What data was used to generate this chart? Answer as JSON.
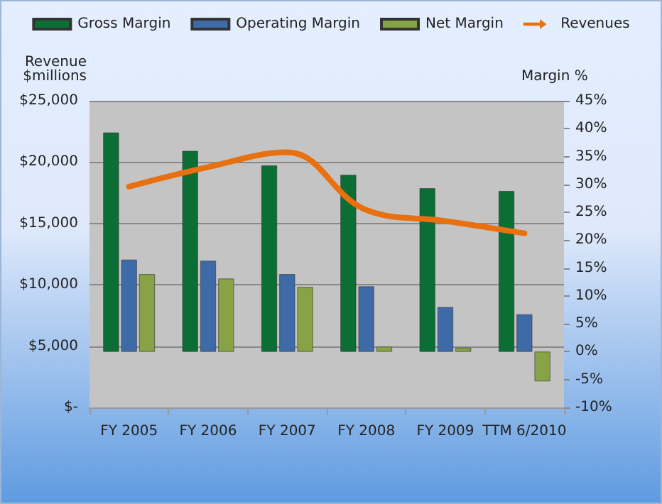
{
  "chart_data": {
    "type": "bar",
    "ylabel": "Revenue\n$millions",
    "y2label": "Margin %",
    "categories": [
      "FY 2005",
      "FY 2006",
      "FY 2007",
      "FY 2008",
      "FY 2009",
      "TTM 6/2010"
    ],
    "series": [
      {
        "name": "Gross Margin",
        "color": "#0b6e35",
        "axis": "y2",
        "values": [
          39.3,
          36.0,
          33.4,
          31.7,
          29.3,
          28.8
        ]
      },
      {
        "name": "Operating Margin",
        "color": "#3e6aa8",
        "axis": "y2",
        "values": [
          16.5,
          16.3,
          13.9,
          11.7,
          8.0,
          6.7
        ]
      },
      {
        "name": "Net Margin",
        "color": "#87a345",
        "axis": "y2",
        "values": [
          13.9,
          13.1,
          11.6,
          0.9,
          0.7,
          -5.3
        ]
      },
      {
        "name": "Revenues",
        "type": "line",
        "color": "#e8700e",
        "axis": "y",
        "values": [
          18000,
          19600,
          20800,
          16100,
          15200,
          14200
        ]
      }
    ],
    "ylim": [
      0,
      25000
    ],
    "yticks": [
      {
        "value": 0,
        "label": "$-"
      },
      {
        "value": 5000,
        "label": "$5,000"
      },
      {
        "value": 10000,
        "label": "$10,000"
      },
      {
        "value": 15000,
        "label": "$15,000"
      },
      {
        "value": 20000,
        "label": "$20,000"
      },
      {
        "value": 25000,
        "label": "$25,000"
      }
    ],
    "y2lim": [
      -10,
      45
    ],
    "y2ticks": [
      {
        "value": -10,
        "label": "-10%"
      },
      {
        "value": -5,
        "label": "-5%"
      },
      {
        "value": 0,
        "label": "0%"
      },
      {
        "value": 5,
        "label": "5%"
      },
      {
        "value": 10,
        "label": "10%"
      },
      {
        "value": 15,
        "label": "15%"
      },
      {
        "value": 20,
        "label": "20%"
      },
      {
        "value": 25,
        "label": "25%"
      },
      {
        "value": 30,
        "label": "30%"
      },
      {
        "value": 35,
        "label": "35%"
      },
      {
        "value": 40,
        "label": "40%"
      },
      {
        "value": 45,
        "label": "45%"
      }
    ],
    "grid": "y",
    "legend": "top",
    "marker": "none",
    "line_style": "solid"
  }
}
